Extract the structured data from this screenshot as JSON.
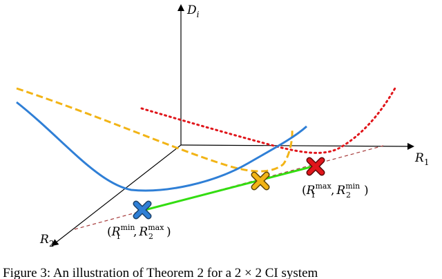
{
  "axes": {
    "vertical_label": "D",
    "vertical_label_sub": "i",
    "right_label": "R",
    "right_label_sub": "1",
    "left_label": "R",
    "left_label_sub": "2"
  },
  "points": {
    "left_point": {
      "open": "(",
      "r1": "R",
      "r1_sub": "1",
      "r1_sup": "min",
      "sep": ",",
      "r2": "R",
      "r2_sub": "2",
      "r2_sup": "max",
      "close": ")"
    },
    "right_point": {
      "open": "(",
      "r1": "R",
      "r1_sub": "1",
      "r1_sup": "max",
      "sep": ",",
      "r2": "R",
      "r2_sub": "2",
      "r2_sup": "min",
      "close": ")"
    }
  },
  "caption": "Figure 3: An illustration of Theorem 2 for a 2 × 2 CI system",
  "colors": {
    "axis": "#000000",
    "blue_curve": "#2f7fd6",
    "orange_curve": "#f2b416",
    "red_curve": "#e0161b",
    "green_segment": "#33dd11",
    "dashed_line": "#a63a3a",
    "blue_marker": "#2f7fd6",
    "orange_marker": "#f2b416",
    "red_marker": "#e0161b"
  }
}
